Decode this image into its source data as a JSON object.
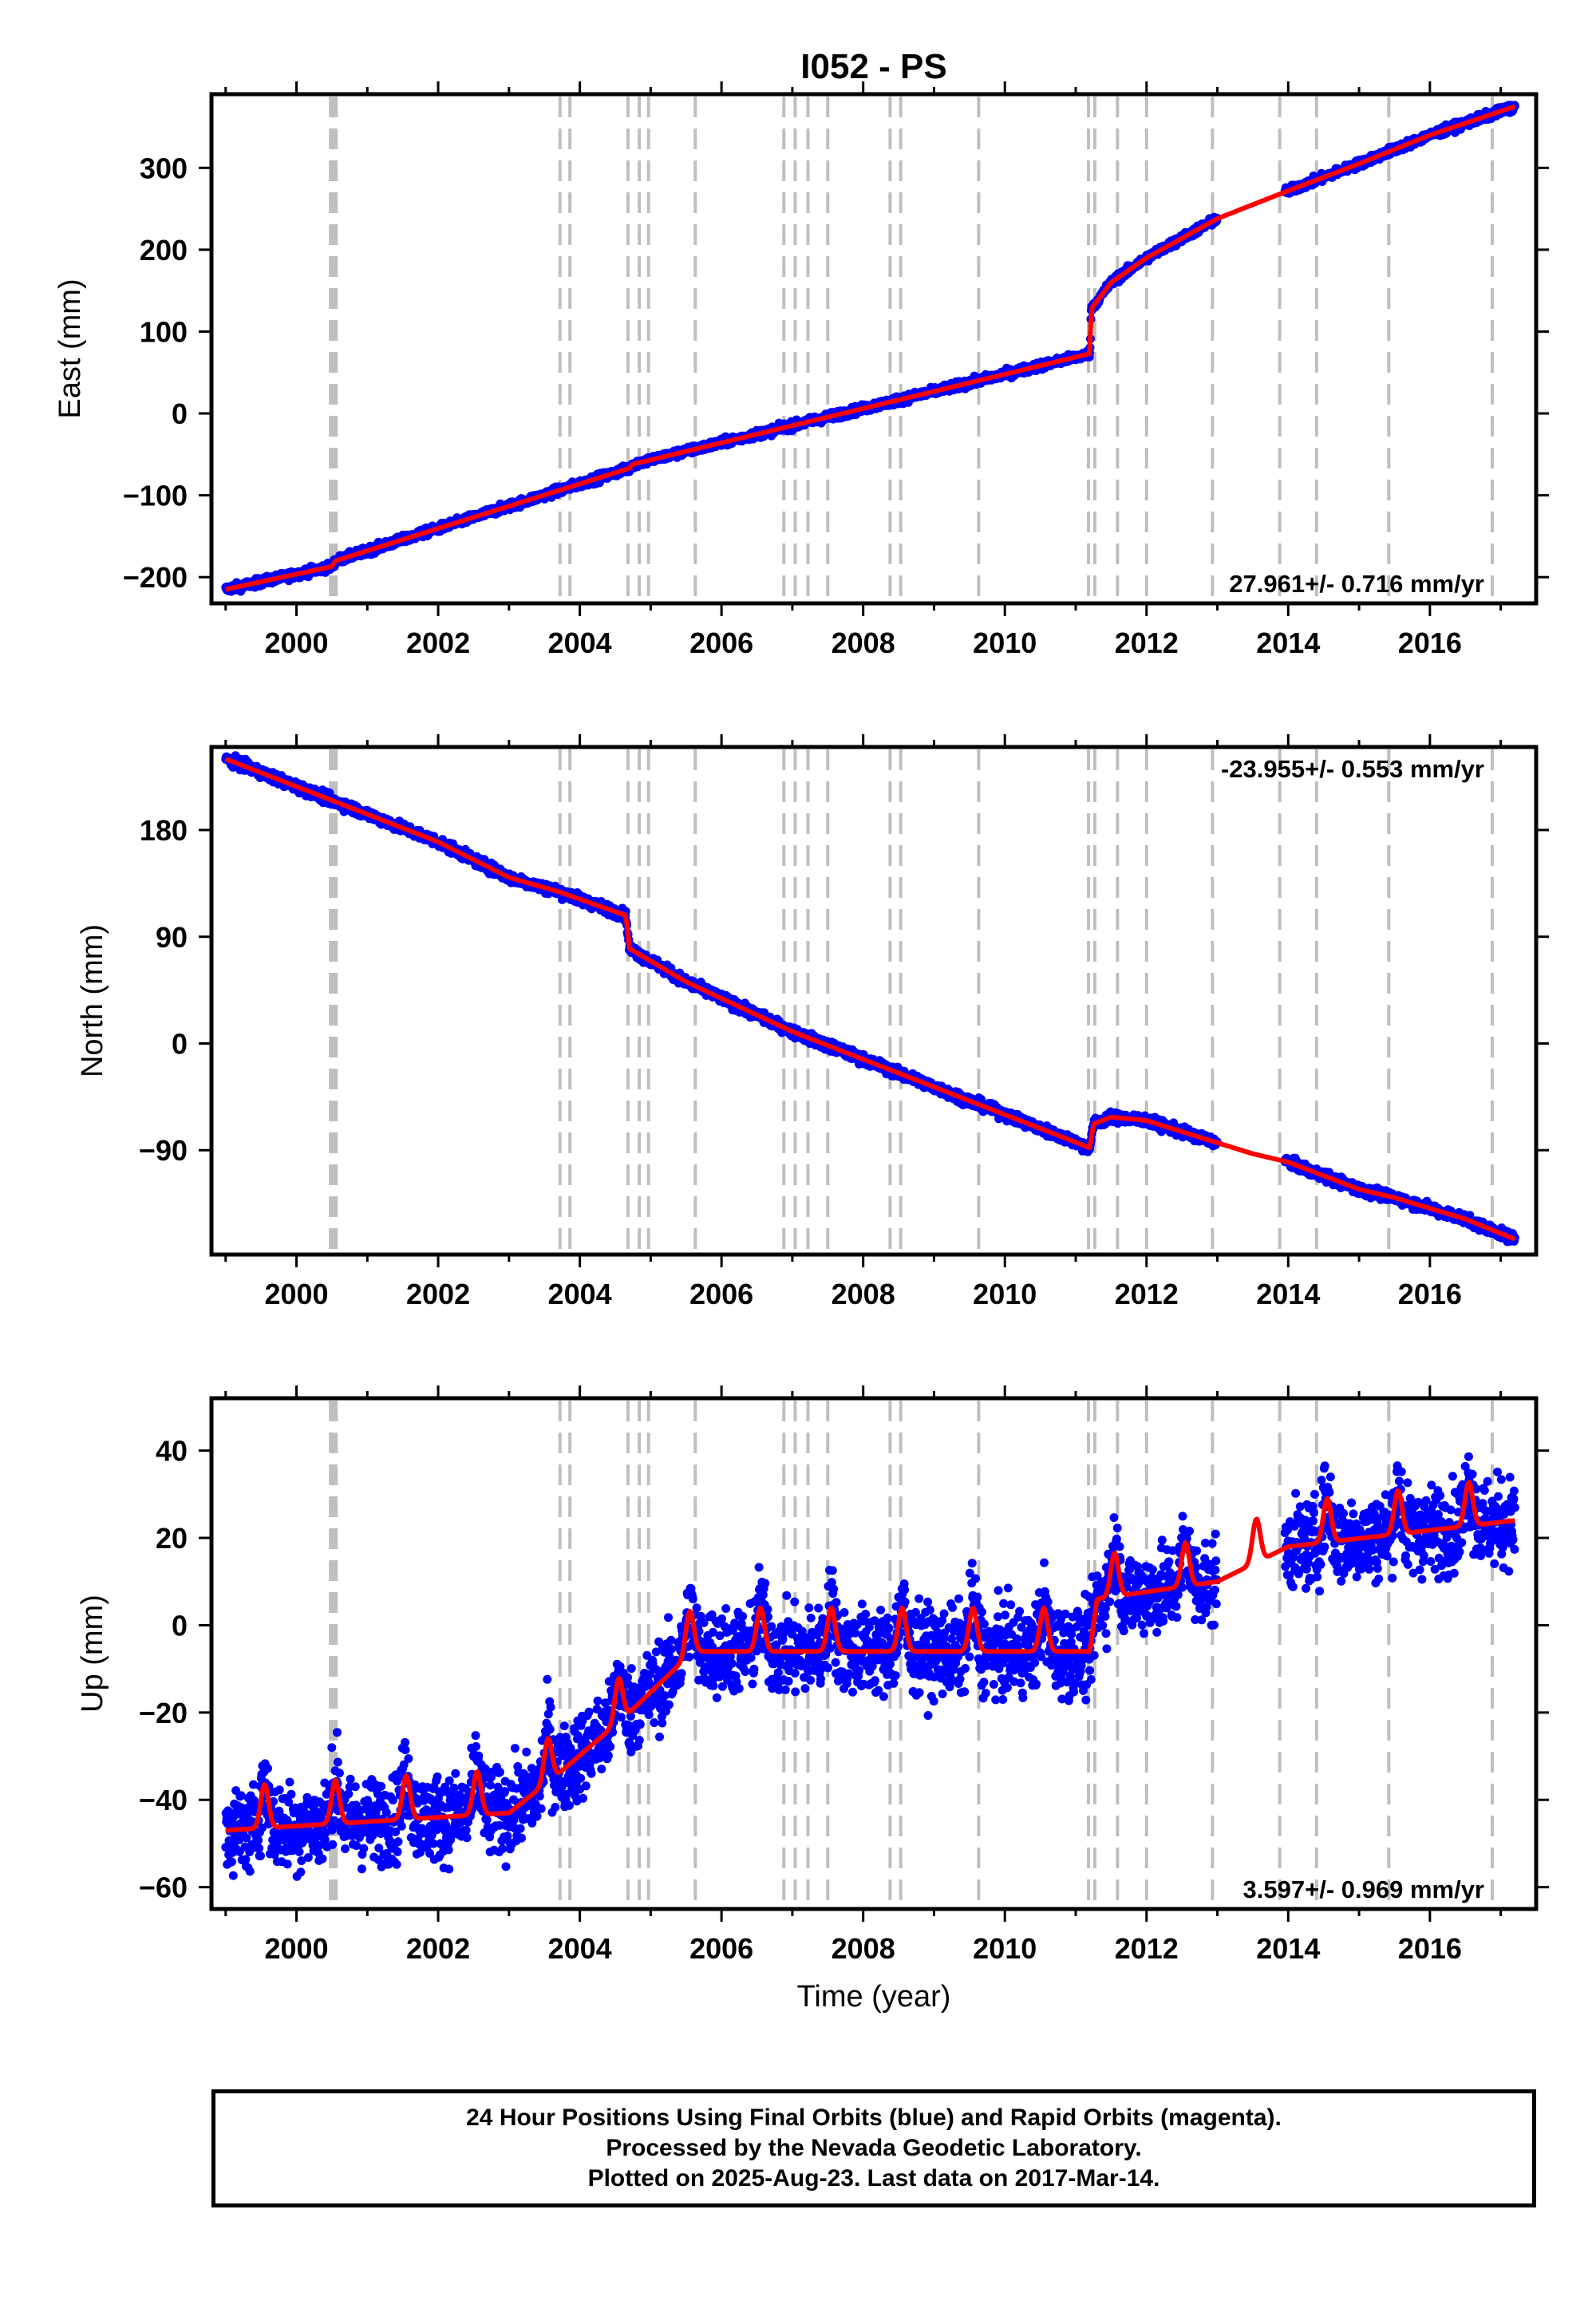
{
  "title": "I052 - PS",
  "footer": {
    "line1": "24 Hour Positions Using Final Orbits (blue) and Rapid Orbits (magenta).",
    "line2": "Processed by the Nevada Geodetic Laboratory.",
    "line3": "Plotted on 2025-Aug-23. Last data on 2017-Mar-14."
  },
  "colors": {
    "data": "#0000ff",
    "model": "#ff0000",
    "steps": "#bfbfbf",
    "frame": "#000000"
  },
  "chart_data": [
    {
      "type": "scatter",
      "title": "I052 - PS",
      "xlabel": "",
      "ylabel": "East (mm)",
      "xlim": [
        1998.8,
        2017.5
      ],
      "ylim": [
        -232,
        390
      ],
      "xticks": [
        2000,
        2002,
        2004,
        2006,
        2008,
        2010,
        2012,
        2014,
        2016
      ],
      "yticks": [
        -200,
        -100,
        0,
        100,
        200,
        300
      ],
      "ytick_labels": [
        "−200",
        "−100",
        "0",
        "100",
        "200",
        "300"
      ],
      "annotation": "27.961+/- 0.716 mm/yr",
      "annotation_position": "bottom-right",
      "noise_mm": 3.5,
      "data_gap": [
        2013.0,
        2013.95
      ],
      "series": [
        {
          "role": "model",
          "x": [
            1999.0,
            2000.5,
            2000.55,
            2004.7,
            2004.75,
            2011.2,
            2011.22,
            2011.5,
            2012.0,
            2013.0,
            2014.0,
            2015.0,
            2016.0,
            2017.2
          ],
          "y": [
            -215,
            -187,
            -180,
            -67,
            -62,
            73,
            128,
            160,
            190,
            238,
            272,
            305,
            340,
            375
          ]
        }
      ]
    },
    {
      "type": "scatter",
      "title": "",
      "xlabel": "",
      "ylabel": "North (mm)",
      "xlim": [
        1998.8,
        2017.5
      ],
      "ylim": [
        -178,
        250
      ],
      "xticks": [
        2000,
        2002,
        2004,
        2006,
        2008,
        2010,
        2012,
        2014,
        2016
      ],
      "yticks": [
        -90,
        0,
        90,
        180
      ],
      "ytick_labels": [
        "−90",
        "0",
        "90",
        "180"
      ],
      "annotation": "-23.955+/- 0.553 mm/yr",
      "annotation_position": "top-right",
      "noise_mm": 3,
      "data_gap": [
        2013.0,
        2013.95
      ],
      "series": [
        {
          "role": "model",
          "x": [
            1999.0,
            2000.5,
            2002.0,
            2003.0,
            2003.7,
            2004.65,
            2004.7,
            2005.5,
            2007.0,
            2008.5,
            2010.0,
            2011.2,
            2011.25,
            2011.5,
            2012.0,
            2012.8,
            2013.5,
            2014.0,
            2015.0,
            2015.5,
            2016.5,
            2017.2
          ],
          "y": [
            240,
            205,
            170,
            140,
            128,
            108,
            80,
            52,
            10,
            -25,
            -60,
            -88,
            -68,
            -62,
            -65,
            -80,
            -93,
            -100,
            -123,
            -130,
            -148,
            -165
          ]
        }
      ]
    },
    {
      "type": "scatter",
      "title": "",
      "xlabel": "Time (year)",
      "ylabel": "Up (mm)",
      "xlim": [
        1998.8,
        2017.5
      ],
      "ylim": [
        -65,
        52
      ],
      "xticks": [
        2000,
        2002,
        2004,
        2006,
        2008,
        2010,
        2012,
        2014,
        2016
      ],
      "yticks": [
        -60,
        -40,
        -20,
        0,
        20,
        40
      ],
      "ytick_labels": [
        "−60",
        "−40",
        "−20",
        "0",
        "20",
        "40"
      ],
      "annotation": "3.597+/- 0.969 mm/yr",
      "annotation_position": "bottom-right",
      "noise_mm": 7,
      "data_gap": [
        2013.0,
        2013.95
      ],
      "seasonal": {
        "amplitude": 5,
        "peak_phase": 0.55
      },
      "series": [
        {
          "role": "trend",
          "x": [
            1999.0,
            2003.0,
            2003.7,
            2004.7,
            2005.6,
            2011.2,
            2011.3,
            2013.0,
            2014.0,
            2017.2
          ],
          "y": [
            -44,
            -40,
            -31,
            -17,
            -3,
            -3,
            9,
            13,
            21,
            27
          ]
        }
      ]
    }
  ],
  "step_epochs": [
    2000.48,
    2000.52,
    2000.56,
    2003.72,
    2003.86,
    2004.68,
    2004.84,
    2004.97,
    2005.63,
    2006.88,
    2007.04,
    2007.22,
    2007.5,
    2008.38,
    2008.53,
    2009.63,
    2011.18,
    2011.27,
    2011.59,
    2012.0,
    2012.93,
    2013.88,
    2014.4,
    2015.42,
    2016.88
  ]
}
